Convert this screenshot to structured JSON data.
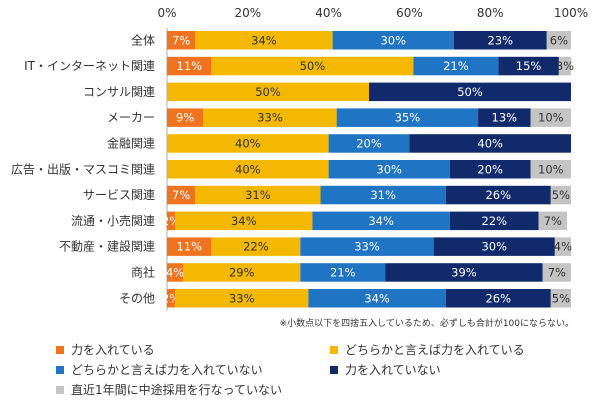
{
  "chart_data": {
    "type": "bar",
    "orientation": "horizontal",
    "stacked": true,
    "categories": [
      "全体",
      "IT・インターネット関連",
      "コンサル関連",
      "メーカー",
      "金融関連",
      "広告・出版・マスコミ関連",
      "サービス関連",
      "流通・小売関連",
      "不動産・建設関連",
      "商社",
      "その他"
    ],
    "series": [
      {
        "name": "力を入れている",
        "color": "#f0741f",
        "values": [
          7,
          11,
          0,
          9,
          0,
          0,
          7,
          2,
          11,
          4,
          2
        ],
        "labels": [
          "7%",
          "11%",
          "",
          "9%",
          "",
          "",
          "7%",
          "2%",
          "11%",
          "4%",
          "2%"
        ]
      },
      {
        "name": "どちらかと言えば力を入れている",
        "color": "#f5b800",
        "values": [
          34,
          50,
          50,
          33,
          40,
          40,
          31,
          34,
          22,
          29,
          33
        ],
        "labels": [
          "34%",
          "50%",
          "50%",
          "33%",
          "40%",
          "40%",
          "31%",
          "34%",
          "22%",
          "29%",
          "33%"
        ]
      },
      {
        "name": "どちらかと言えば力を入れていない",
        "color": "#1f74c4",
        "values": [
          30,
          21,
          0,
          35,
          20,
          30,
          31,
          34,
          33,
          21,
          34
        ],
        "labels": [
          "30%",
          "21%",
          "",
          "35%",
          "20%",
          "30%",
          "31%",
          "34%",
          "33%",
          "21%",
          "34%"
        ]
      },
      {
        "name": "力を入れていない",
        "color": "#102a6b",
        "values": [
          23,
          15,
          50,
          13,
          40,
          20,
          26,
          22,
          30,
          39,
          26
        ],
        "labels": [
          "23%",
          "15%",
          "50%",
          "13%",
          "40%",
          "20%",
          "26%",
          "22%",
          "30%",
          "39%",
          "26%"
        ]
      },
      {
        "name": "直近1年間に中途採用を行なっていない",
        "color": "#c4c4c4",
        "values": [
          6,
          3,
          0,
          10,
          0,
          10,
          5,
          7,
          4,
          7,
          5
        ],
        "labels": [
          "6%",
          "3%",
          "",
          "10%",
          "",
          "10%",
          "5%",
          "7%",
          "4%",
          "7%",
          "5%"
        ]
      }
    ],
    "xticks": [
      "0%",
      "20%",
      "40%",
      "60%",
      "80%",
      "100%"
    ],
    "xlim": [
      0,
      100
    ],
    "grid": false,
    "legend_position": "bottom",
    "note": "※小数点以下を四捨五入しているため、必ずしも合計が100にならない。"
  }
}
